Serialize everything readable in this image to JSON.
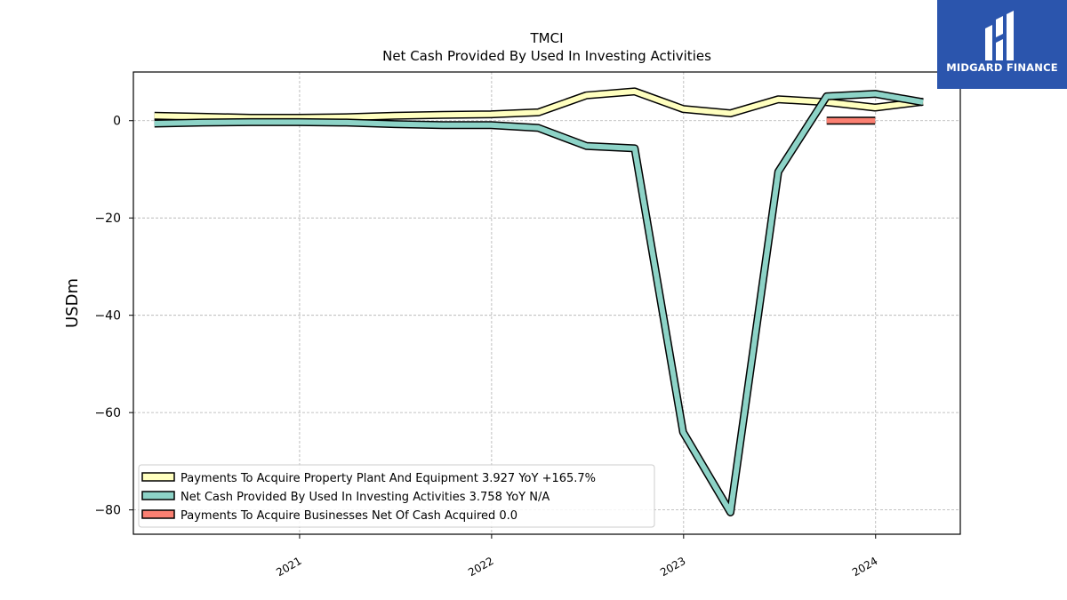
{
  "brand": {
    "name": "MIDGARD FINANCE",
    "background": "#2b55ad"
  },
  "chart_data": {
    "type": "line",
    "title": "TMCI",
    "subtitle": "Net Cash Provided By Used In Investing Activities",
    "ylabel": "USDm",
    "xlabel": "",
    "ylim": [
      -85,
      10
    ],
    "xlim": [
      "2020-02-20",
      "2024-06-10"
    ],
    "x_ticks": [
      "2021",
      "2022",
      "2023",
      "2024"
    ],
    "y_ticks": [
      0,
      -20,
      -40,
      -60,
      -80
    ],
    "y_tick_labels": [
      "0",
      "−20",
      "−40",
      "−60",
      "−80"
    ],
    "grid": true,
    "legend_position": "lower-left",
    "series": [
      {
        "name": "Payments To Acquire Property Plant And Equipment",
        "legend_label": "Payments To Acquire Property Plant And Equipment  3.927 YoY +165.7%",
        "color": "#ffffbf",
        "x": [
          "2020-03-31",
          "2020-06-30",
          "2020-09-30",
          "2020-12-31",
          "2021-03-31",
          "2021-06-30",
          "2021-09-30",
          "2021-12-31",
          "2022-03-31",
          "2022-06-30",
          "2022-09-30",
          "2022-12-31",
          "2023-03-31",
          "2023-06-30",
          "2023-09-30",
          "2023-12-31",
          "2024-03-31"
        ],
        "values": [
          1.0,
          0.8,
          0.6,
          0.6,
          0.7,
          1.0,
          1.2,
          1.3,
          1.7,
          5.2,
          6.0,
          2.4,
          1.5,
          4.4,
          3.8,
          2.7,
          3.9
        ]
      },
      {
        "name": "Net Cash Provided By Used In Investing Activities",
        "legend_label": "Net Cash Provided By Used In Investing Activities  3.758 YoY N/A",
        "color": "#8dd3c7",
        "x": [
          "2020-03-31",
          "2020-06-30",
          "2020-09-30",
          "2020-12-31",
          "2021-03-31",
          "2021-06-30",
          "2021-09-30",
          "2021-12-31",
          "2022-03-31",
          "2022-06-30",
          "2022-09-30",
          "2022-12-31",
          "2023-03-31",
          "2023-06-30",
          "2023-09-30",
          "2023-12-31",
          "2024-03-31"
        ],
        "values": [
          -0.6,
          -0.4,
          -0.3,
          -0.3,
          -0.4,
          -0.7,
          -0.9,
          -0.9,
          -1.5,
          -5.2,
          -5.7,
          -64.0,
          -80.5,
          -10.5,
          5.0,
          5.5,
          3.8
        ]
      },
      {
        "name": "Payments To Acquire Businesses Net Of Cash Acquired",
        "legend_label": "Payments To Acquire Businesses Net Of Cash Acquired  0.0",
        "color": "#fb8072",
        "x": [
          "2023-09-30",
          "2023-12-31"
        ],
        "values": [
          0.0,
          0.0
        ]
      }
    ]
  }
}
